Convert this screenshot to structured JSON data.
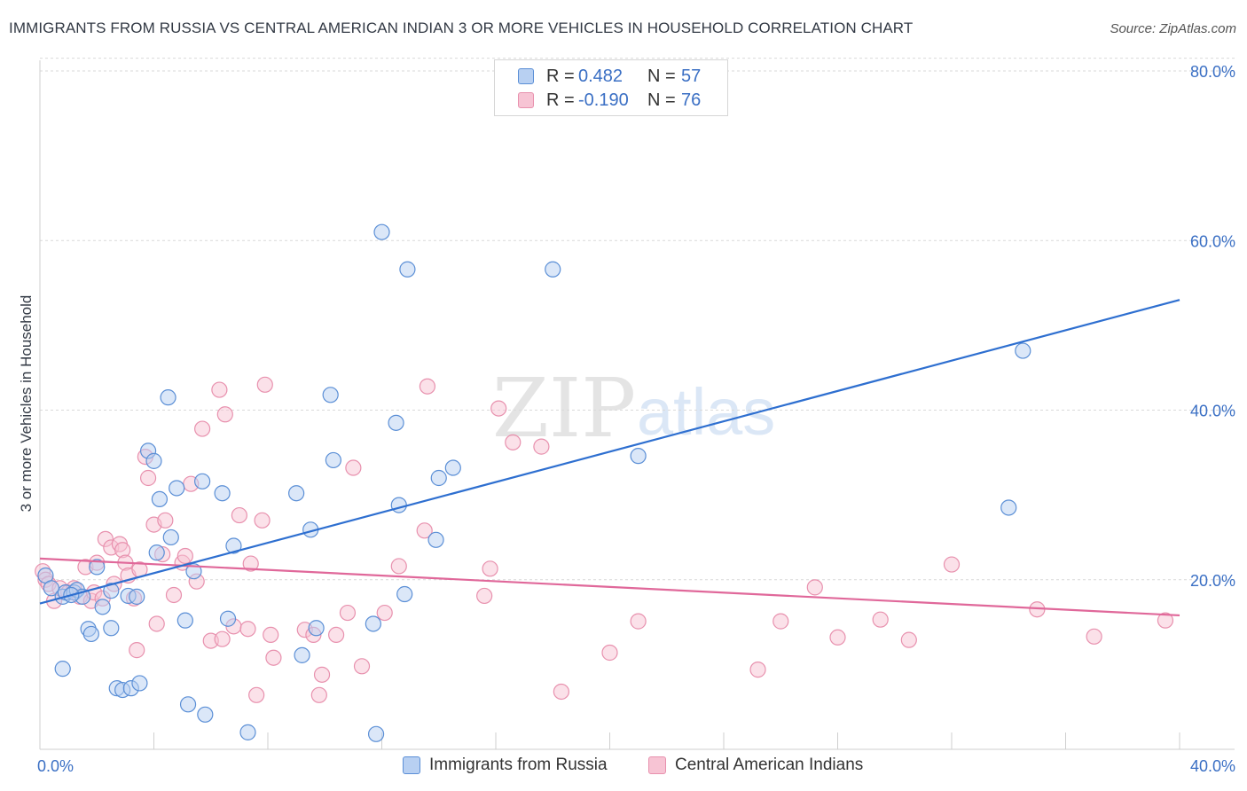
{
  "title": "IMMIGRANTS FROM RUSSIA VS CENTRAL AMERICAN INDIAN 3 OR MORE VEHICLES IN HOUSEHOLD CORRELATION CHART",
  "source": "Source: ZipAtlas.com",
  "watermark": {
    "zip": "ZIP",
    "atlas": "atlas"
  },
  "legend": {
    "russia": {
      "r_label": "R =",
      "r_value": "0.482",
      "n_label": "N =",
      "n_value": "57"
    },
    "cai": {
      "r_label": "R =",
      "r_value": "-0.190",
      "n_label": "N =",
      "n_value": "76"
    }
  },
  "colors": {
    "russia_fill": "#b8d0f2",
    "russia_stroke": "#5b8fd6",
    "russia_line": "#2e6fd0",
    "cai_fill": "#f7c4d4",
    "cai_stroke": "#e891ae",
    "cai_line": "#e0689a",
    "grid": "#d9d9d9",
    "axis_tick_text": "#3a6fc4"
  },
  "chart_data": {
    "type": "scatter",
    "title": "IMMIGRANTS FROM RUSSIA VS CENTRAL AMERICAN INDIAN 3 OR MORE VEHICLES IN HOUSEHOLD CORRELATION CHART",
    "xlabel": "",
    "ylabel": "3 or more Vehicles in Household",
    "xlim": [
      0,
      40
    ],
    "ylim": [
      0,
      80
    ],
    "x_tick_labels": [
      "0.0%",
      "40.0%"
    ],
    "y_tick_labels": [
      "20.0%",
      "40.0%",
      "60.0%",
      "80.0%"
    ],
    "y_ticks": [
      20,
      40,
      60,
      80
    ],
    "grid": "horizontal dashed",
    "legend_position": "top-center",
    "series": [
      {
        "name": "Immigrants from Russia",
        "trend": [
          [
            0,
            17.2
          ],
          [
            40,
            53.0
          ]
        ],
        "points": [
          [
            0.2,
            20.5
          ],
          [
            0.4,
            19.0
          ],
          [
            0.8,
            18.0
          ],
          [
            0.9,
            18.5
          ],
          [
            1.2,
            18.5
          ],
          [
            1.3,
            18.8
          ],
          [
            1.5,
            18.0
          ],
          [
            0.8,
            9.5
          ],
          [
            1.7,
            14.2
          ],
          [
            1.8,
            13.6
          ],
          [
            2.0,
            21.5
          ],
          [
            2.2,
            16.8
          ],
          [
            2.5,
            14.3
          ],
          [
            2.5,
            18.7
          ],
          [
            2.7,
            7.2
          ],
          [
            2.9,
            7.0
          ],
          [
            3.1,
            18.1
          ],
          [
            3.2,
            7.2
          ],
          [
            3.4,
            18.0
          ],
          [
            3.5,
            7.8
          ],
          [
            3.8,
            35.2
          ],
          [
            4.0,
            34.0
          ],
          [
            4.2,
            29.5
          ],
          [
            4.1,
            23.2
          ],
          [
            4.5,
            41.5
          ],
          [
            4.6,
            25.0
          ],
          [
            4.8,
            30.8
          ],
          [
            5.1,
            15.2
          ],
          [
            5.2,
            5.3
          ],
          [
            5.4,
            21.0
          ],
          [
            5.7,
            31.6
          ],
          [
            5.8,
            4.1
          ],
          [
            6.4,
            30.2
          ],
          [
            6.6,
            15.4
          ],
          [
            6.8,
            24.0
          ],
          [
            7.3,
            2.0
          ],
          [
            9.0,
            30.2
          ],
          [
            9.5,
            25.9
          ],
          [
            9.2,
            11.1
          ],
          [
            9.7,
            14.3
          ],
          [
            10.2,
            41.8
          ],
          [
            10.3,
            34.1
          ],
          [
            11.7,
            14.8
          ],
          [
            11.8,
            1.8
          ],
          [
            12.0,
            61.0
          ],
          [
            12.5,
            38.5
          ],
          [
            12.6,
            28.8
          ],
          [
            12.9,
            56.6
          ],
          [
            12.8,
            18.3
          ],
          [
            13.9,
            24.7
          ],
          [
            14.0,
            32.0
          ],
          [
            14.5,
            33.2
          ],
          [
            18.0,
            56.6
          ],
          [
            21.0,
            34.6
          ],
          [
            34.0,
            28.5
          ],
          [
            34.5,
            47.0
          ],
          [
            1.1,
            18.2
          ]
        ]
      },
      {
        "name": "Central American Indians",
        "trend": [
          [
            0,
            22.5
          ],
          [
            40,
            15.8
          ]
        ],
        "points": [
          [
            0.1,
            21.0
          ],
          [
            0.2,
            20.0
          ],
          [
            0.3,
            19.5
          ],
          [
            0.5,
            17.5
          ],
          [
            0.7,
            19.0
          ],
          [
            1.0,
            18.5
          ],
          [
            1.2,
            19.0
          ],
          [
            1.4,
            18.0
          ],
          [
            1.6,
            21.5
          ],
          [
            1.8,
            17.5
          ],
          [
            1.9,
            18.5
          ],
          [
            2.0,
            22.0
          ],
          [
            2.2,
            17.8
          ],
          [
            2.3,
            24.8
          ],
          [
            2.5,
            23.8
          ],
          [
            2.6,
            19.5
          ],
          [
            2.8,
            24.2
          ],
          [
            2.9,
            23.5
          ],
          [
            3.0,
            22.0
          ],
          [
            3.1,
            20.5
          ],
          [
            3.3,
            17.8
          ],
          [
            3.4,
            11.7
          ],
          [
            3.5,
            21.2
          ],
          [
            3.7,
            34.5
          ],
          [
            3.8,
            32.0
          ],
          [
            4.0,
            26.5
          ],
          [
            4.1,
            14.8
          ],
          [
            4.3,
            23.0
          ],
          [
            4.4,
            27.0
          ],
          [
            4.7,
            18.2
          ],
          [
            5.0,
            22.0
          ],
          [
            5.1,
            22.8
          ],
          [
            5.3,
            31.3
          ],
          [
            5.5,
            19.8
          ],
          [
            5.7,
            37.8
          ],
          [
            6.0,
            12.8
          ],
          [
            6.3,
            42.4
          ],
          [
            6.4,
            13.0
          ],
          [
            6.5,
            39.5
          ],
          [
            6.8,
            14.5
          ],
          [
            7.0,
            27.6
          ],
          [
            7.3,
            14.2
          ],
          [
            7.4,
            21.9
          ],
          [
            7.6,
            6.4
          ],
          [
            7.8,
            27.0
          ],
          [
            7.9,
            43.0
          ],
          [
            8.1,
            13.5
          ],
          [
            8.2,
            10.8
          ],
          [
            9.3,
            14.1
          ],
          [
            9.6,
            13.5
          ],
          [
            9.8,
            6.4
          ],
          [
            9.9,
            8.8
          ],
          [
            10.4,
            13.5
          ],
          [
            10.8,
            16.1
          ],
          [
            11.0,
            33.2
          ],
          [
            11.3,
            9.8
          ],
          [
            12.1,
            16.1
          ],
          [
            12.6,
            21.6
          ],
          [
            13.5,
            25.8
          ],
          [
            13.6,
            42.8
          ],
          [
            15.6,
            18.1
          ],
          [
            15.8,
            21.3
          ],
          [
            16.1,
            40.2
          ],
          [
            16.6,
            36.2
          ],
          [
            17.6,
            35.7
          ],
          [
            18.3,
            6.8
          ],
          [
            20.0,
            11.4
          ],
          [
            21.0,
            15.1
          ],
          [
            25.2,
            9.4
          ],
          [
            26.0,
            15.1
          ],
          [
            27.2,
            19.1
          ],
          [
            28.0,
            13.2
          ],
          [
            29.5,
            15.3
          ],
          [
            30.5,
            12.9
          ],
          [
            32.0,
            21.8
          ],
          [
            35.0,
            16.5
          ],
          [
            37.0,
            13.3
          ],
          [
            39.5,
            15.2
          ]
        ]
      }
    ]
  },
  "bottom_legend": {
    "russia": "Immigrants from Russia",
    "cai": "Central American Indians"
  }
}
